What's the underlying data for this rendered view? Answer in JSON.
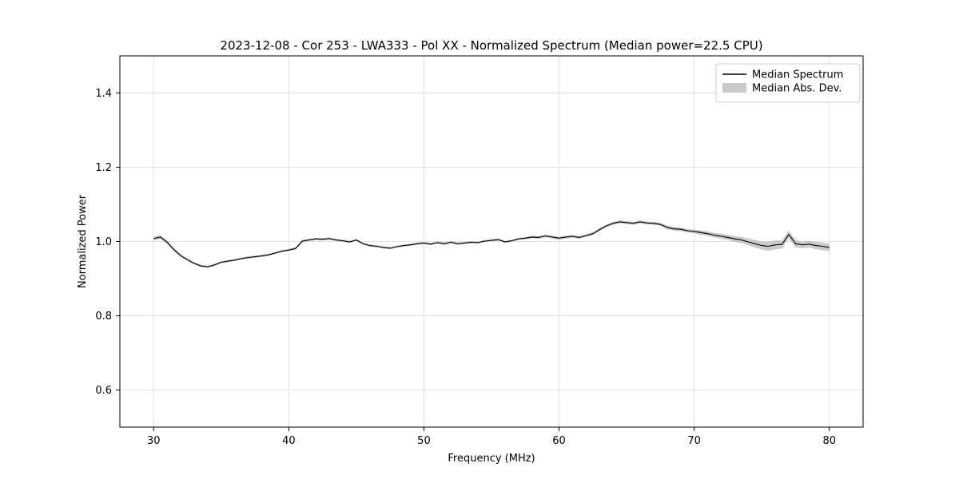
{
  "chart_data": {
    "type": "line",
    "title": "2023-12-08 - Cor 253 - LWA333 - Pol XX - Normalized Spectrum (Median power=22.5 CPU)",
    "xlabel": "Frequency (MHz)",
    "ylabel": "Normalized Power",
    "xlim": [
      27.5,
      82.5
    ],
    "ylim": [
      0.5,
      1.5
    ],
    "grid": true,
    "legend_position": "upper right",
    "legend": [
      "Median Spectrum",
      "Median Abs. Dev."
    ],
    "colors": {
      "line": "#000000",
      "band": "#c4c4c4",
      "grid": "#e1e1e1"
    },
    "x_ticks": [
      30,
      40,
      50,
      60,
      70,
      80
    ],
    "x_tick_labels": [
      "30",
      "40",
      "50",
      "60",
      "70",
      "80"
    ],
    "y_ticks": [
      0.6,
      0.8,
      1.0,
      1.2,
      1.4
    ],
    "y_tick_labels": [
      "0.6",
      "0.8",
      "1.0",
      "1.2",
      "1.4"
    ],
    "x": [
      30.0,
      30.5,
      31.0,
      31.5,
      32.0,
      32.5,
      33.0,
      33.5,
      34.0,
      34.5,
      35.0,
      35.5,
      36.0,
      36.5,
      37.0,
      37.5,
      38.0,
      38.5,
      39.0,
      39.5,
      40.0,
      40.5,
      41.0,
      41.5,
      42.0,
      42.5,
      43.0,
      43.5,
      44.0,
      44.5,
      45.0,
      45.5,
      46.0,
      46.5,
      47.0,
      47.5,
      48.0,
      48.5,
      49.0,
      49.5,
      50.0,
      50.5,
      51.0,
      51.5,
      52.0,
      52.5,
      53.0,
      53.5,
      54.0,
      54.5,
      55.0,
      55.5,
      56.0,
      56.5,
      57.0,
      57.5,
      58.0,
      58.5,
      59.0,
      59.5,
      60.0,
      60.5,
      61.0,
      61.5,
      62.0,
      62.5,
      63.0,
      63.5,
      64.0,
      64.5,
      65.0,
      65.5,
      66.0,
      66.5,
      67.0,
      67.5,
      68.0,
      68.5,
      69.0,
      69.5,
      70.0,
      70.5,
      71.0,
      71.5,
      72.0,
      72.5,
      73.0,
      73.5,
      74.0,
      74.5,
      75.0,
      75.5,
      76.0,
      76.5,
      77.0,
      77.5,
      78.0,
      78.5,
      79.0,
      79.5,
      80.0
    ],
    "series": [
      {
        "name": "Median Spectrum",
        "values": [
          1.008,
          1.012,
          0.998,
          0.978,
          0.962,
          0.951,
          0.941,
          0.934,
          0.932,
          0.937,
          0.944,
          0.947,
          0.95,
          0.954,
          0.957,
          0.959,
          0.961,
          0.964,
          0.969,
          0.974,
          0.977,
          0.981,
          1.001,
          1.004,
          1.007,
          1.006,
          1.008,
          1.004,
          1.002,
          0.999,
          1.004,
          0.994,
          0.989,
          0.987,
          0.984,
          0.982,
          0.986,
          0.989,
          0.991,
          0.994,
          0.996,
          0.993,
          0.997,
          0.994,
          0.998,
          0.994,
          0.996,
          0.998,
          0.997,
          1.001,
          1.003,
          1.005,
          0.999,
          1.002,
          1.007,
          1.009,
          1.012,
          1.011,
          1.015,
          1.012,
          1.009,
          1.012,
          1.014,
          1.011,
          1.016,
          1.021,
          1.032,
          1.042,
          1.049,
          1.053,
          1.051,
          1.049,
          1.053,
          1.05,
          1.049,
          1.046,
          1.038,
          1.034,
          1.033,
          1.029,
          1.027,
          1.024,
          1.021,
          1.017,
          1.014,
          1.011,
          1.007,
          1.004,
          0.999,
          0.994,
          0.989,
          0.987,
          0.991,
          0.992,
          1.019,
          0.994,
          0.991,
          0.993,
          0.989,
          0.987,
          0.984
        ]
      },
      {
        "name": "Median Abs. Dev. (band half-width)",
        "values": [
          0.006,
          0.005,
          0.005,
          0.004,
          0.004,
          0.004,
          0.003,
          0.003,
          0.003,
          0.003,
          0.003,
          0.003,
          0.003,
          0.003,
          0.003,
          0.003,
          0.003,
          0.003,
          0.003,
          0.003,
          0.003,
          0.003,
          0.004,
          0.003,
          0.003,
          0.003,
          0.003,
          0.003,
          0.003,
          0.003,
          0.003,
          0.003,
          0.003,
          0.003,
          0.003,
          0.003,
          0.003,
          0.003,
          0.003,
          0.003,
          0.003,
          0.003,
          0.003,
          0.003,
          0.003,
          0.003,
          0.003,
          0.003,
          0.003,
          0.003,
          0.003,
          0.003,
          0.003,
          0.003,
          0.003,
          0.003,
          0.004,
          0.004,
          0.004,
          0.004,
          0.004,
          0.004,
          0.004,
          0.004,
          0.004,
          0.004,
          0.004,
          0.004,
          0.004,
          0.004,
          0.004,
          0.004,
          0.004,
          0.004,
          0.004,
          0.004,
          0.005,
          0.005,
          0.005,
          0.005,
          0.005,
          0.006,
          0.006,
          0.006,
          0.007,
          0.007,
          0.008,
          0.008,
          0.009,
          0.01,
          0.011,
          0.012,
          0.012,
          0.011,
          0.01,
          0.01,
          0.009,
          0.009,
          0.01,
          0.01,
          0.01
        ]
      }
    ]
  }
}
